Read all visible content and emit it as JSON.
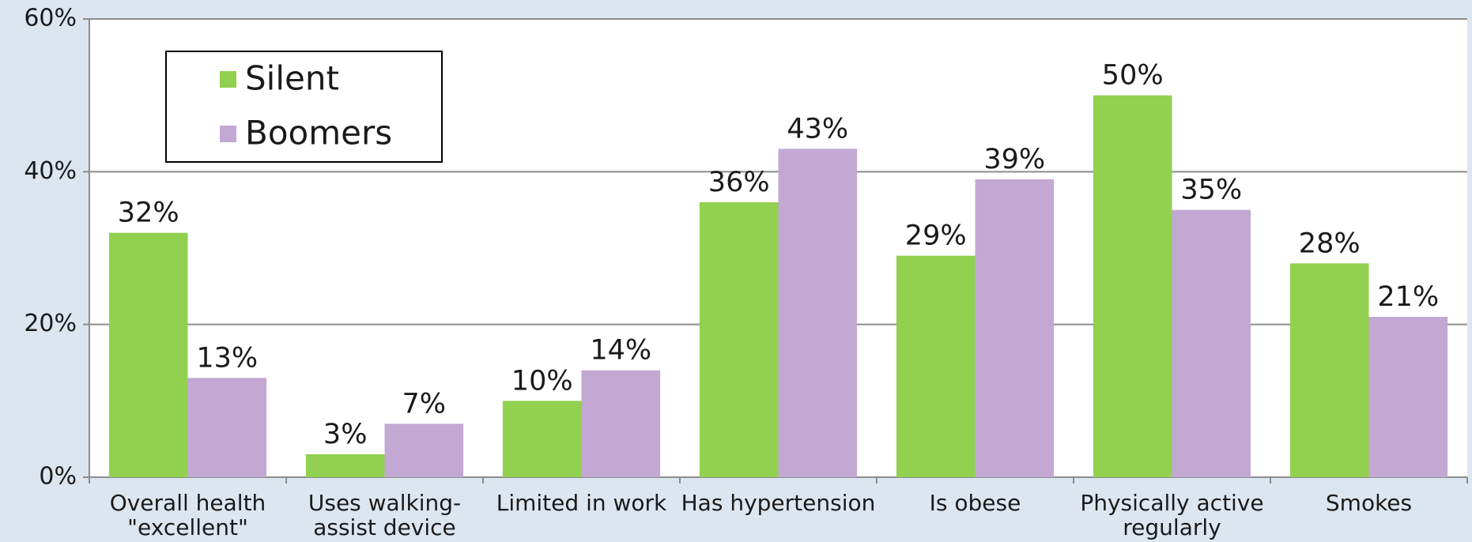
{
  "chart_data": {
    "type": "bar",
    "categories": [
      "Overall health\n\"excellent\"",
      "Uses walking-\nassist device",
      "Limited in work",
      "Has hypertension",
      "Is obese",
      "Physically active\nregularly",
      "Smokes"
    ],
    "series": [
      {
        "name": "Silent",
        "color": "#92d050",
        "values": [
          32,
          3,
          10,
          36,
          29,
          50,
          28
        ],
        "value_labels": [
          "32%",
          "3%",
          "10%",
          "36%",
          "29%",
          "50%",
          "28%"
        ]
      },
      {
        "name": "Boomers",
        "color": "#c4a8d4",
        "values": [
          13,
          7,
          14,
          43,
          39,
          35,
          21
        ],
        "value_labels": [
          "13%",
          "7%",
          "14%",
          "43%",
          "39%",
          "35%",
          "21%"
        ]
      }
    ],
    "ylim": [
      0,
      60
    ],
    "yticks": [
      {
        "value": 0,
        "label": "0%"
      },
      {
        "value": 20,
        "label": "20%"
      },
      {
        "value": 40,
        "label": "40%"
      },
      {
        "value": 60,
        "label": "60%"
      }
    ],
    "grid": true,
    "legend": "top-left"
  }
}
